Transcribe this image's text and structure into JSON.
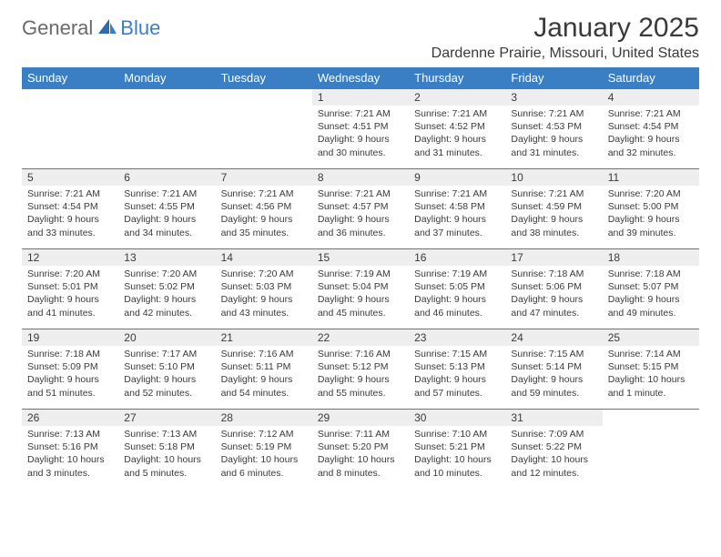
{
  "logo": {
    "text1": "General",
    "text2": "Blue"
  },
  "title": "January 2025",
  "location": "Dardenne Prairie, Missouri, United States",
  "colors": {
    "header_bg": "#3a7fc4",
    "header_text": "#ffffff",
    "daynum_bg": "#eeeeee",
    "border": "#3a7fc4",
    "text": "#3a3a3a",
    "logo_gray": "#6a6a6a",
    "logo_blue": "#3a7fc4",
    "page_bg": "#ffffff"
  },
  "typography": {
    "title_fontsize": 30,
    "location_fontsize": 16,
    "dayhead_fontsize": 13,
    "daynum_fontsize": 12,
    "cell_fontsize": 10.5,
    "logo_fontsize": 22
  },
  "day_names": [
    "Sunday",
    "Monday",
    "Tuesday",
    "Wednesday",
    "Thursday",
    "Friday",
    "Saturday"
  ],
  "weeks": [
    [
      {
        "empty": true
      },
      {
        "empty": true
      },
      {
        "empty": true
      },
      {
        "num": "1",
        "sunrise": "Sunrise: 7:21 AM",
        "sunset": "Sunset: 4:51 PM",
        "daylight": "Daylight: 9 hours and 30 minutes."
      },
      {
        "num": "2",
        "sunrise": "Sunrise: 7:21 AM",
        "sunset": "Sunset: 4:52 PM",
        "daylight": "Daylight: 9 hours and 31 minutes."
      },
      {
        "num": "3",
        "sunrise": "Sunrise: 7:21 AM",
        "sunset": "Sunset: 4:53 PM",
        "daylight": "Daylight: 9 hours and 31 minutes."
      },
      {
        "num": "4",
        "sunrise": "Sunrise: 7:21 AM",
        "sunset": "Sunset: 4:54 PM",
        "daylight": "Daylight: 9 hours and 32 minutes."
      }
    ],
    [
      {
        "num": "5",
        "sunrise": "Sunrise: 7:21 AM",
        "sunset": "Sunset: 4:54 PM",
        "daylight": "Daylight: 9 hours and 33 minutes."
      },
      {
        "num": "6",
        "sunrise": "Sunrise: 7:21 AM",
        "sunset": "Sunset: 4:55 PM",
        "daylight": "Daylight: 9 hours and 34 minutes."
      },
      {
        "num": "7",
        "sunrise": "Sunrise: 7:21 AM",
        "sunset": "Sunset: 4:56 PM",
        "daylight": "Daylight: 9 hours and 35 minutes."
      },
      {
        "num": "8",
        "sunrise": "Sunrise: 7:21 AM",
        "sunset": "Sunset: 4:57 PM",
        "daylight": "Daylight: 9 hours and 36 minutes."
      },
      {
        "num": "9",
        "sunrise": "Sunrise: 7:21 AM",
        "sunset": "Sunset: 4:58 PM",
        "daylight": "Daylight: 9 hours and 37 minutes."
      },
      {
        "num": "10",
        "sunrise": "Sunrise: 7:21 AM",
        "sunset": "Sunset: 4:59 PM",
        "daylight": "Daylight: 9 hours and 38 minutes."
      },
      {
        "num": "11",
        "sunrise": "Sunrise: 7:20 AM",
        "sunset": "Sunset: 5:00 PM",
        "daylight": "Daylight: 9 hours and 39 minutes."
      }
    ],
    [
      {
        "num": "12",
        "sunrise": "Sunrise: 7:20 AM",
        "sunset": "Sunset: 5:01 PM",
        "daylight": "Daylight: 9 hours and 41 minutes."
      },
      {
        "num": "13",
        "sunrise": "Sunrise: 7:20 AM",
        "sunset": "Sunset: 5:02 PM",
        "daylight": "Daylight: 9 hours and 42 minutes."
      },
      {
        "num": "14",
        "sunrise": "Sunrise: 7:20 AM",
        "sunset": "Sunset: 5:03 PM",
        "daylight": "Daylight: 9 hours and 43 minutes."
      },
      {
        "num": "15",
        "sunrise": "Sunrise: 7:19 AM",
        "sunset": "Sunset: 5:04 PM",
        "daylight": "Daylight: 9 hours and 45 minutes."
      },
      {
        "num": "16",
        "sunrise": "Sunrise: 7:19 AM",
        "sunset": "Sunset: 5:05 PM",
        "daylight": "Daylight: 9 hours and 46 minutes."
      },
      {
        "num": "17",
        "sunrise": "Sunrise: 7:18 AM",
        "sunset": "Sunset: 5:06 PM",
        "daylight": "Daylight: 9 hours and 47 minutes."
      },
      {
        "num": "18",
        "sunrise": "Sunrise: 7:18 AM",
        "sunset": "Sunset: 5:07 PM",
        "daylight": "Daylight: 9 hours and 49 minutes."
      }
    ],
    [
      {
        "num": "19",
        "sunrise": "Sunrise: 7:18 AM",
        "sunset": "Sunset: 5:09 PM",
        "daylight": "Daylight: 9 hours and 51 minutes."
      },
      {
        "num": "20",
        "sunrise": "Sunrise: 7:17 AM",
        "sunset": "Sunset: 5:10 PM",
        "daylight": "Daylight: 9 hours and 52 minutes."
      },
      {
        "num": "21",
        "sunrise": "Sunrise: 7:16 AM",
        "sunset": "Sunset: 5:11 PM",
        "daylight": "Daylight: 9 hours and 54 minutes."
      },
      {
        "num": "22",
        "sunrise": "Sunrise: 7:16 AM",
        "sunset": "Sunset: 5:12 PM",
        "daylight": "Daylight: 9 hours and 55 minutes."
      },
      {
        "num": "23",
        "sunrise": "Sunrise: 7:15 AM",
        "sunset": "Sunset: 5:13 PM",
        "daylight": "Daylight: 9 hours and 57 minutes."
      },
      {
        "num": "24",
        "sunrise": "Sunrise: 7:15 AM",
        "sunset": "Sunset: 5:14 PM",
        "daylight": "Daylight: 9 hours and 59 minutes."
      },
      {
        "num": "25",
        "sunrise": "Sunrise: 7:14 AM",
        "sunset": "Sunset: 5:15 PM",
        "daylight": "Daylight: 10 hours and 1 minute."
      }
    ],
    [
      {
        "num": "26",
        "sunrise": "Sunrise: 7:13 AM",
        "sunset": "Sunset: 5:16 PM",
        "daylight": "Daylight: 10 hours and 3 minutes."
      },
      {
        "num": "27",
        "sunrise": "Sunrise: 7:13 AM",
        "sunset": "Sunset: 5:18 PM",
        "daylight": "Daylight: 10 hours and 5 minutes."
      },
      {
        "num": "28",
        "sunrise": "Sunrise: 7:12 AM",
        "sunset": "Sunset: 5:19 PM",
        "daylight": "Daylight: 10 hours and 6 minutes."
      },
      {
        "num": "29",
        "sunrise": "Sunrise: 7:11 AM",
        "sunset": "Sunset: 5:20 PM",
        "daylight": "Daylight: 10 hours and 8 minutes."
      },
      {
        "num": "30",
        "sunrise": "Sunrise: 7:10 AM",
        "sunset": "Sunset: 5:21 PM",
        "daylight": "Daylight: 10 hours and 10 minutes."
      },
      {
        "num": "31",
        "sunrise": "Sunrise: 7:09 AM",
        "sunset": "Sunset: 5:22 PM",
        "daylight": "Daylight: 10 hours and 12 minutes."
      },
      {
        "empty": true
      }
    ]
  ]
}
